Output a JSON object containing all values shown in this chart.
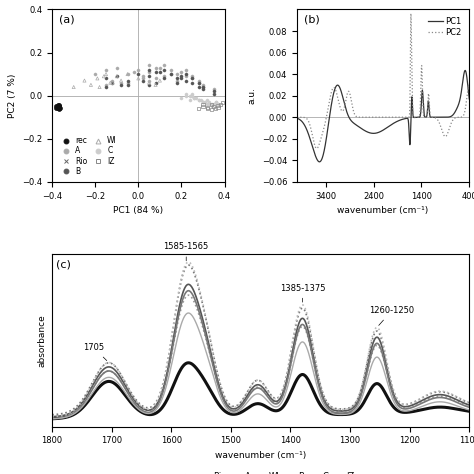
{
  "fig_width": 4.74,
  "fig_height": 4.74,
  "dpi": 100,
  "panel_a": {
    "label": "(a)",
    "xlim": [
      -0.4,
      0.4
    ],
    "ylim": [
      -0.4,
      0.4
    ],
    "xlabel": "PC1 (84 %)",
    "ylabel": "PC2 (7 %)",
    "xticks": [
      -0.4,
      -0.2,
      0.0,
      0.2,
      0.4
    ],
    "yticks": [
      -0.4,
      -0.2,
      0.0,
      0.2,
      0.4
    ],
    "groups": {
      "rec": {
        "x": [
          -0.38,
          -0.37,
          -0.375,
          -0.365,
          -0.37,
          -0.38,
          -0.375,
          -0.37,
          -0.368,
          -0.372,
          -0.369,
          -0.371,
          -0.373
        ],
        "y": [
          -0.055,
          -0.05,
          -0.045,
          -0.055,
          -0.06,
          -0.05,
          -0.055,
          -0.045,
          -0.05,
          -0.055,
          -0.058,
          -0.052,
          -0.048
        ],
        "marker": "o",
        "color": "#111111",
        "size": 8,
        "filled": true,
        "lw": 0.5
      },
      "Rio": {
        "x": [
          -0.275,
          -0.195
        ],
        "y": [
          -0.02,
          -0.055
        ],
        "marker": "x",
        "color": "#666666",
        "size": 7,
        "filled": false,
        "lw": 1.0
      },
      "WI": {
        "x": [
          -0.3,
          -0.25,
          -0.22,
          -0.19,
          -0.15,
          -0.12,
          -0.1,
          -0.08,
          -0.05,
          0.0,
          0.05,
          0.08,
          0.1,
          -0.18,
          -0.16,
          -0.13
        ],
        "y": [
          0.04,
          0.07,
          0.05,
          0.08,
          0.1,
          0.06,
          0.09,
          0.07,
          0.1,
          0.08,
          0.06,
          0.05,
          0.07,
          0.04,
          0.09,
          0.06
        ],
        "marker": "^",
        "color": "#aaaaaa",
        "size": 5,
        "filled": false,
        "lw": 0.5
      },
      "IZ": {
        "x": [
          0.28,
          0.3,
          0.32,
          0.34,
          0.35,
          0.36,
          0.37,
          0.38,
          0.3,
          0.32,
          0.34,
          0.37,
          0.39
        ],
        "y": [
          -0.06,
          -0.05,
          -0.06,
          -0.04,
          -0.05,
          -0.06,
          -0.055,
          -0.04,
          -0.04,
          -0.055,
          -0.065,
          -0.045,
          -0.03
        ],
        "marker": "s",
        "color": "#888888",
        "size": 5,
        "filled": false,
        "lw": 0.5
      },
      "A": {
        "x": [
          -0.2,
          -0.15,
          -0.1,
          -0.05,
          0.0,
          0.05,
          0.1,
          0.15,
          0.18,
          0.2,
          0.22,
          0.08,
          0.12,
          -0.08,
          -0.12,
          0.25,
          0.28,
          0.3,
          0.05,
          0.02,
          0.15,
          -0.02,
          0.22,
          0.18,
          0.08,
          0.12,
          0.25,
          0.3,
          0.02,
          -0.05,
          0.35,
          -0.15,
          0.28,
          0.05
        ],
        "y": [
          0.1,
          0.12,
          0.13,
          0.1,
          0.12,
          0.14,
          0.13,
          0.12,
          0.1,
          0.11,
          0.09,
          0.08,
          0.09,
          0.06,
          0.07,
          0.08,
          0.06,
          0.05,
          0.07,
          0.09,
          0.1,
          0.11,
          0.12,
          0.07,
          0.13,
          0.14,
          0.09,
          0.04,
          0.08,
          0.06,
          0.03,
          0.05,
          0.07,
          0.11
        ],
        "marker": "o",
        "color": "#aaaaaa",
        "size": 5,
        "filled": true,
        "lw": 0.3
      },
      "B": {
        "x": [
          -0.15,
          -0.1,
          -0.05,
          0.0,
          0.05,
          0.1,
          0.15,
          0.18,
          0.2,
          0.22,
          0.08,
          0.25,
          0.28,
          0.3,
          0.05,
          0.02,
          -0.08,
          -0.12,
          0.12,
          0.35,
          0.18,
          0.22,
          0.08,
          0.25,
          0.12,
          0.05,
          -0.05,
          0.3,
          -0.15,
          0.28,
          0.35,
          0.2
        ],
        "y": [
          0.08,
          0.09,
          0.07,
          0.1,
          0.12,
          0.11,
          0.1,
          0.08,
          0.09,
          0.07,
          0.06,
          0.06,
          0.04,
          0.03,
          0.05,
          0.07,
          0.05,
          0.06,
          0.08,
          0.02,
          0.06,
          0.1,
          0.11,
          0.08,
          0.12,
          0.09,
          0.05,
          0.04,
          0.04,
          0.06,
          0.01,
          0.08
        ],
        "marker": "o",
        "color": "#555555",
        "size": 5,
        "filled": true,
        "lw": 0.3
      },
      "C": {
        "x": [
          0.2,
          0.22,
          0.24,
          0.25,
          0.26,
          0.28,
          0.3,
          0.32,
          0.33,
          0.34,
          0.35,
          0.36,
          0.37,
          0.25,
          0.27,
          0.29,
          0.31,
          0.33,
          0.22,
          0.24,
          0.26,
          0.28,
          0.3,
          0.32,
          0.34,
          0.36
        ],
        "y": [
          -0.01,
          0.0,
          -0.02,
          0.01,
          -0.01,
          -0.02,
          -0.03,
          -0.04,
          -0.03,
          -0.05,
          -0.04,
          -0.03,
          -0.04,
          0.0,
          -0.01,
          -0.02,
          -0.03,
          -0.04,
          0.01,
          0.0,
          -0.01,
          -0.02,
          -0.03,
          -0.02,
          -0.04,
          -0.03
        ],
        "marker": "o",
        "color": "#cccccc",
        "size": 5,
        "filled": true,
        "lw": 0.3
      }
    },
    "legend_entries": [
      {
        "label": "rec",
        "marker": "o",
        "color": "#111111",
        "filled": true
      },
      {
        "label": "A",
        "marker": "o",
        "color": "#aaaaaa",
        "filled": true
      },
      {
        "label": "Rio",
        "marker": "x",
        "color": "#666666",
        "filled": false
      },
      {
        "label": "B",
        "marker": "o",
        "color": "#555555",
        "filled": true
      },
      {
        "label": "WI",
        "marker": "^",
        "color": "#aaaaaa",
        "filled": false
      },
      {
        "label": "C",
        "marker": "o",
        "color": "#cccccc",
        "filled": true
      },
      {
        "label": "IZ",
        "marker": "s",
        "color": "#888888",
        "filled": false
      }
    ]
  },
  "panel_b": {
    "label": "(b)",
    "xlabel": "wavenumber (cm⁻¹)",
    "ylabel": "a.u.",
    "xlim": [
      4000,
      400
    ],
    "ylim": [
      -0.06,
      0.1
    ],
    "yticks": [
      -0.06,
      -0.04,
      -0.02,
      0.0,
      0.02,
      0.04,
      0.06,
      0.08
    ],
    "xticks": [
      3400,
      2400,
      1400,
      400
    ]
  },
  "panel_c": {
    "label": "(c)",
    "xlabel": "wavenumber (cm⁻¹)",
    "ylabel": "absorbance",
    "xlim": [
      1800,
      1100
    ],
    "xticks": [
      1800,
      1700,
      1600,
      1500,
      1400,
      1300,
      1200,
      1100
    ],
    "annotations": [
      "1705",
      "1585-1565",
      "1385-1375",
      "1260-1250"
    ],
    "legend_entries": [
      "rec",
      "Rio",
      "A",
      "WI",
      "B",
      "C",
      "IZ"
    ],
    "legend_styles": [
      {
        "ls": "-",
        "lw": 2.2,
        "color": "#111111"
      },
      {
        "ls": ":",
        "lw": 1.2,
        "color": "#999999"
      },
      {
        "ls": "-",
        "lw": 1.2,
        "color": "#555555"
      },
      {
        "ls": ":",
        "lw": 1.2,
        "color": "#777777"
      },
      {
        "ls": "-",
        "lw": 1.2,
        "color": "#777777"
      },
      {
        "ls": "-",
        "lw": 1.0,
        "color": "#aaaaaa"
      },
      {
        "ls": ":",
        "lw": 1.2,
        "color": "#bbbbbb"
      }
    ]
  }
}
